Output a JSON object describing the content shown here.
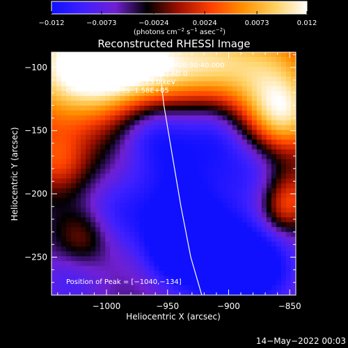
{
  "colorbar": {
    "ticks": [
      "−0.012",
      "−0.0073",
      "−0.0024",
      "0.0024",
      "0.0073",
      "0.012"
    ],
    "tick_values": [
      -0.012,
      -0.0073,
      -0.0024,
      0.0024,
      0.0073,
      0.012
    ],
    "range": [
      -0.012,
      0.012
    ],
    "units_label": "(photons cm",
    "units_exp1": "−2",
    "units_mid": " s",
    "units_exp2": "−1",
    "units_mid2": " asec",
    "units_exp3": "−2",
    "units_close": ")",
    "colors": [
      "#1010ff",
      "#4020ff",
      "#7020d0",
      "#000000",
      "#a01000",
      "#ff4000",
      "#ff9000",
      "#ffd060",
      "#ffffff"
    ]
  },
  "chart_data": {
    "type": "heatmap",
    "title": "Reconstructed RHESSI Image",
    "xlabel": "Heliocentric X (arcsec)",
    "ylabel": "Heliocentric Y (arcsec)",
    "xlim": [
      -1045,
      -845
    ],
    "ylim": [
      -280,
      -88
    ],
    "xticks": [
      -1000,
      -950,
      -900,
      -850
    ],
    "xtick_labels": [
      "−1000",
      "−950",
      "−900",
      "−850"
    ],
    "yticks": [
      -100,
      -150,
      -200,
      -250
    ],
    "ytick_labels": [
      "−100",
      "−150",
      "−200",
      "−250"
    ],
    "info_lines": [
      "19−Mar−2014 16:24:40.000 to 16:30:40.000",
      "Detectors: 3F 4F 5F 6F 7F 8F, Att 0",
      "Energy Range: 12.0 − 25.0 keV",
      "Clean    Total counts: 1.58E+05"
    ],
    "peak_label": "Position of Peak = [−1040,−134]",
    "peak": [
      -1040,
      -134
    ],
    "limb_points": [
      [
        -958,
        -88
      ],
      [
        -953,
        -130
      ],
      [
        -946,
        -170
      ],
      [
        -939,
        -210
      ],
      [
        -931,
        -250
      ],
      [
        -922,
        -280
      ]
    ],
    "blobs": [
      {
        "x": -1040,
        "y": -100,
        "v": 0.012,
        "r": 55
      },
      {
        "x": -1000,
        "y": -95,
        "v": 0.012,
        "r": 40
      },
      {
        "x": -960,
        "y": -100,
        "v": 0.01,
        "r": 35
      },
      {
        "x": -920,
        "y": -95,
        "v": 0.008,
        "r": 35
      },
      {
        "x": -870,
        "y": -105,
        "v": 0.012,
        "r": 50
      },
      {
        "x": -855,
        "y": -140,
        "v": 0.009,
        "r": 30
      },
      {
        "x": -1040,
        "y": -175,
        "v": 0.006,
        "r": 25
      },
      {
        "x": -1020,
        "y": -235,
        "v": 0.005,
        "r": 22
      },
      {
        "x": -850,
        "y": -200,
        "v": 0.006,
        "r": 22
      },
      {
        "x": -855,
        "y": -215,
        "v": 0.004,
        "r": 18
      },
      {
        "x": -905,
        "y": -250,
        "v": -0.01,
        "r": 40
      },
      {
        "x": -940,
        "y": -240,
        "v": -0.01,
        "r": 30
      },
      {
        "x": -960,
        "y": -150,
        "v": -0.007,
        "r": 30
      },
      {
        "x": -910,
        "y": -150,
        "v": -0.007,
        "r": 30
      },
      {
        "x": -940,
        "y": -195,
        "v": -0.006,
        "r": 35
      },
      {
        "x": -990,
        "y": -215,
        "v": -0.005,
        "r": 30
      },
      {
        "x": -880,
        "y": -180,
        "v": -0.005,
        "r": 30
      },
      {
        "x": -1030,
        "y": -270,
        "v": -0.004,
        "r": 30
      },
      {
        "x": -870,
        "y": -260,
        "v": -0.006,
        "r": 30
      }
    ]
  },
  "footer": {
    "date": "14−May−2022 00:03"
  }
}
